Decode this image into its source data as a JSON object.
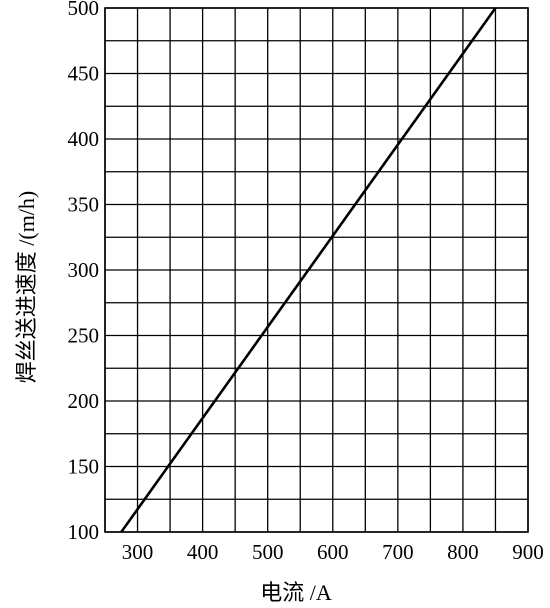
{
  "chart_data": {
    "type": "line",
    "title": "",
    "xlabel": "电流 /A",
    "ylabel": "焊丝送进速度 /(m/h)",
    "xlim": [
      250,
      900
    ],
    "ylim": [
      100,
      500
    ],
    "x_ticks": [
      300,
      400,
      500,
      600,
      700,
      800,
      900
    ],
    "y_ticks": [
      100,
      150,
      200,
      250,
      300,
      350,
      400,
      450,
      500
    ],
    "x_minor_step": 50,
    "y_minor_step": 25,
    "grid": true,
    "series": [
      {
        "x": [
          275,
          850
        ],
        "y": [
          100,
          500
        ]
      }
    ]
  }
}
